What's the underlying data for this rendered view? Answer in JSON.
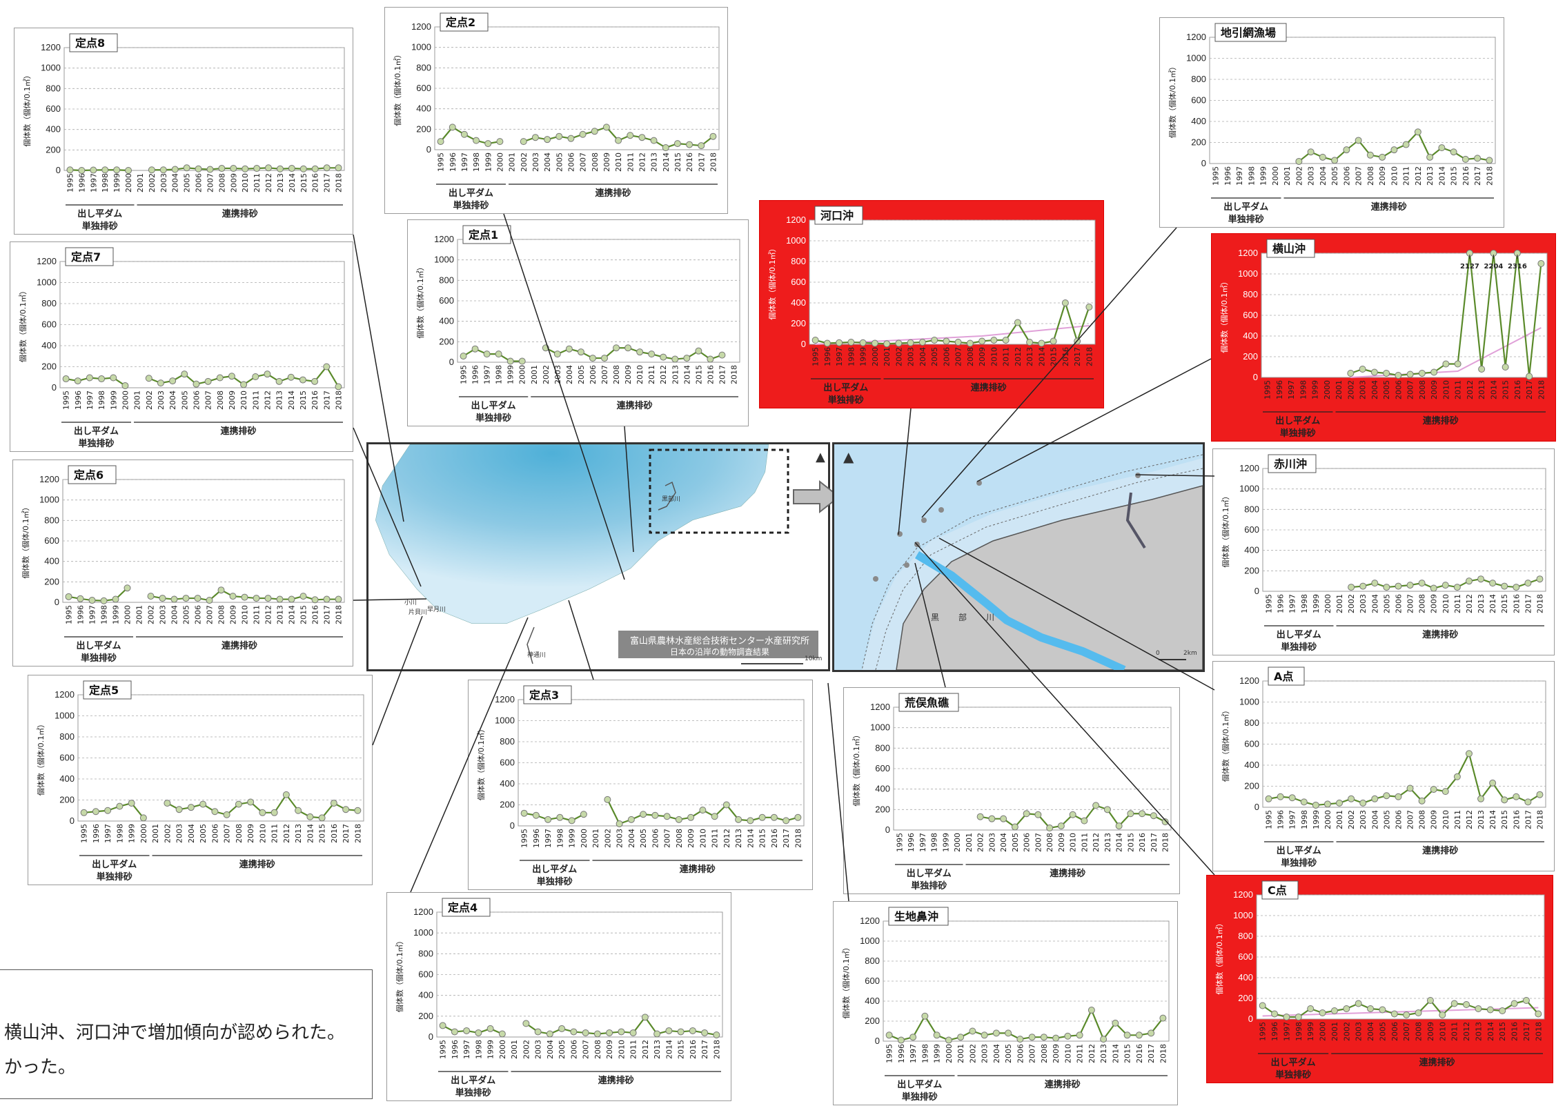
{
  "common": {
    "y_label": "個体数（個体/0.1㎡）",
    "years": [
      "1995",
      "1996",
      "1997",
      "1998",
      "1999",
      "2000",
      "2001",
      "2002",
      "2003",
      "2004",
      "2005",
      "2006",
      "2007",
      "2008",
      "2009",
      "2010",
      "2011",
      "2012",
      "2013",
      "2014",
      "2015",
      "2016",
      "2017",
      "2018"
    ],
    "yticks": [
      "0",
      "200",
      "400",
      "600",
      "800",
      "1000",
      "1200"
    ],
    "period1_line1": "出し平ダム",
    "period1_line2": "単独排砂",
    "period2": "連携排砂"
  },
  "colors": {
    "highlight": "#ee1c1c",
    "series_line": "#5a8a2a",
    "marker_fill": "#c6d9a8",
    "trend_line": "#e0a0d8",
    "sea": "#cfe6f5",
    "land": "#c8c8c8",
    "river": "#55bbee"
  },
  "caption": {
    "line1": "横山沖、河口沖で増加傾向が認められた。",
    "line2": "かった。"
  },
  "map_left": {
    "label": "富山県農林水産総合技術センター水産研究所",
    "label2": "日本の沿岸の動物調査結果",
    "rivers": [
      "黒部川",
      "小川",
      "片貝川",
      "早月川",
      "神通川"
    ],
    "scale": "10km"
  },
  "map_right": {
    "river": "黒部川",
    "scale_start": "0",
    "scale_end": "2km"
  },
  "chart_data": [
    {
      "id": "teiten8",
      "type": "line",
      "title": "定点8",
      "ylim": [
        0,
        1200
      ],
      "red": false,
      "values": [
        5,
        0,
        3,
        5,
        5,
        0,
        null,
        5,
        5,
        10,
        25,
        15,
        10,
        20,
        20,
        15,
        20,
        25,
        15,
        20,
        15,
        15,
        25,
        25
      ]
    },
    {
      "id": "teiten7",
      "type": "line",
      "title": "定点7",
      "ylim": [
        0,
        1200
      ],
      "red": false,
      "values": [
        85,
        65,
        95,
        85,
        95,
        20,
        null,
        90,
        45,
        65,
        130,
        35,
        60,
        95,
        110,
        30,
        105,
        130,
        60,
        100,
        75,
        60,
        200,
        10
      ]
    },
    {
      "id": "teiten6",
      "type": "line",
      "title": "定点6",
      "ylim": [
        0,
        1200
      ],
      "red": false,
      "values": [
        55,
        35,
        20,
        15,
        30,
        140,
        null,
        60,
        40,
        30,
        40,
        40,
        20,
        120,
        60,
        50,
        40,
        40,
        30,
        30,
        60,
        25,
        30,
        30
      ]
    },
    {
      "id": "teiten5",
      "type": "line",
      "title": "定点5",
      "ylim": [
        0,
        1200
      ],
      "red": false,
      "values": [
        80,
        90,
        100,
        140,
        170,
        30,
        null,
        170,
        110,
        130,
        160,
        90,
        60,
        160,
        180,
        80,
        80,
        250,
        100,
        40,
        30,
        170,
        110,
        100
      ]
    },
    {
      "id": "teiten2",
      "type": "line",
      "title": "定点2",
      "ylim": [
        0,
        1200
      ],
      "red": false,
      "values": [
        80,
        220,
        150,
        90,
        60,
        80,
        null,
        80,
        120,
        100,
        130,
        110,
        150,
        180,
        220,
        90,
        140,
        120,
        90,
        20,
        60,
        50,
        40,
        130
      ]
    },
    {
      "id": "teiten1",
      "type": "line",
      "title": "定点1",
      "ylim": [
        0,
        1200
      ],
      "red": false,
      "values": [
        60,
        130,
        80,
        80,
        10,
        10,
        null,
        140,
        80,
        130,
        100,
        40,
        40,
        140,
        140,
        100,
        80,
        50,
        30,
        40,
        110,
        30,
        70,
        null
      ]
    },
    {
      "id": "teiten3",
      "type": "line",
      "title": "定点3",
      "ylim": [
        0,
        1200
      ],
      "red": false,
      "values": [
        120,
        100,
        60,
        80,
        50,
        110,
        null,
        250,
        20,
        60,
        110,
        100,
        90,
        60,
        80,
        150,
        90,
        200,
        60,
        50,
        80,
        80,
        50,
        80
      ]
    },
    {
      "id": "teiten4",
      "type": "line",
      "title": "定点4",
      "ylim": [
        0,
        1200
      ],
      "red": false,
      "values": [
        110,
        50,
        60,
        40,
        80,
        30,
        null,
        130,
        50,
        30,
        80,
        50,
        40,
        30,
        40,
        50,
        40,
        190,
        30,
        60,
        50,
        60,
        40,
        20
      ]
    },
    {
      "id": "kakouoki",
      "type": "line",
      "title": "河口沖",
      "ylim": [
        0,
        1200
      ],
      "red": true,
      "values": [
        40,
        10,
        15,
        20,
        15,
        10,
        5,
        10,
        15,
        20,
        40,
        30,
        20,
        10,
        30,
        40,
        40,
        210,
        20,
        10,
        30,
        400,
        30,
        360
      ],
      "trend": [
        [
          0,
          0
        ],
        [
          14,
          80
        ],
        [
          23,
          180
        ]
      ]
    },
    {
      "id": "jibikiami",
      "type": "line",
      "title": "地引網漁場",
      "ylim": [
        0,
        1200
      ],
      "red": false,
      "values": [
        null,
        null,
        null,
        null,
        null,
        null,
        null,
        20,
        110,
        60,
        30,
        130,
        220,
        80,
        60,
        130,
        180,
        300,
        60,
        150,
        110,
        40,
        50,
        30
      ]
    },
    {
      "id": "yokoyamaoki",
      "type": "line",
      "title": "横山沖",
      "ylim": [
        0,
        1200
      ],
      "red": true,
      "values": [
        null,
        null,
        null,
        null,
        null,
        null,
        null,
        40,
        80,
        50,
        40,
        20,
        30,
        40,
        50,
        130,
        130,
        2127,
        80,
        2204,
        100,
        2316,
        10,
        1100
      ],
      "annotations": [
        {
          "index": 17,
          "text": "2127"
        },
        {
          "index": 19,
          "text": "2204"
        },
        {
          "index": 21,
          "text": "2316"
        }
      ],
      "trend": [
        [
          7,
          0
        ],
        [
          16,
          60
        ],
        [
          23,
          480
        ]
      ]
    },
    {
      "id": "akagawaoki",
      "type": "line",
      "title": "赤川沖",
      "ylim": [
        0,
        1200
      ],
      "red": false,
      "values": [
        null,
        null,
        null,
        null,
        null,
        null,
        null,
        40,
        50,
        80,
        40,
        50,
        60,
        80,
        30,
        60,
        40,
        100,
        120,
        80,
        50,
        40,
        80,
        120
      ]
    },
    {
      "id": "a_ten",
      "type": "line",
      "title": "A点",
      "ylim": [
        0,
        1200
      ],
      "red": false,
      "values": [
        80,
        100,
        90,
        50,
        20,
        30,
        40,
        80,
        40,
        80,
        110,
        100,
        180,
        60,
        170,
        150,
        290,
        510,
        80,
        230,
        70,
        100,
        50,
        120
      ]
    },
    {
      "id": "aramata",
      "type": "line",
      "title": "荒俣魚礁",
      "ylim": [
        0,
        1200
      ],
      "red": false,
      "values": [
        null,
        null,
        null,
        null,
        null,
        null,
        null,
        130,
        110,
        110,
        30,
        160,
        150,
        20,
        40,
        150,
        90,
        240,
        200,
        40,
        160,
        160,
        140,
        80
      ]
    },
    {
      "id": "ikuji",
      "type": "line",
      "title": "生地鼻沖",
      "ylim": [
        0,
        1200
      ],
      "red": false,
      "values": [
        60,
        10,
        40,
        250,
        60,
        10,
        40,
        100,
        60,
        80,
        80,
        20,
        40,
        40,
        30,
        50,
        60,
        310,
        20,
        180,
        60,
        60,
        80,
        230
      ]
    },
    {
      "id": "c_ten",
      "type": "line",
      "title": "C点",
      "ylim": [
        0,
        1200
      ],
      "red": true,
      "values": [
        130,
        50,
        20,
        20,
        100,
        60,
        80,
        100,
        150,
        100,
        90,
        50,
        40,
        60,
        180,
        40,
        150,
        140,
        100,
        90,
        80,
        150,
        180,
        50
      ],
      "trend": [
        [
          0,
          30
        ],
        [
          23,
          110
        ]
      ]
    }
  ]
}
